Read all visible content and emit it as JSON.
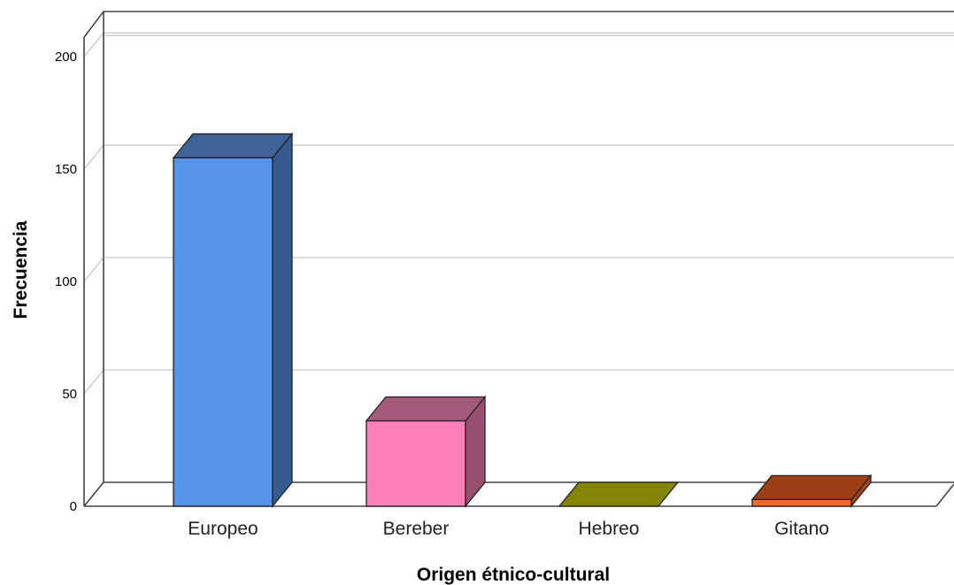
{
  "chart_data": {
    "type": "bar",
    "style": "3d",
    "categories": [
      "Europeo",
      "Bereber",
      "Hebreo",
      "Gitano"
    ],
    "values": [
      155,
      38,
      0,
      3
    ],
    "colors": [
      {
        "front": "#5594e6",
        "side": "#355b8e",
        "top": "#3e6399"
      },
      {
        "front": "#fb80b9",
        "side": "#98506f",
        "top": "#a35a7b"
      },
      {
        "front": "#8c8c0a",
        "side": "#6f6f08",
        "top": "#848408"
      },
      {
        "front": "#f5692a",
        "side": "#a3421a",
        "top": "#9c3e16"
      }
    ],
    "title": "",
    "xlabel": "Origen étnico-cultural",
    "ylabel": "Frecuencia",
    "ylim": [
      0,
      200
    ],
    "yticks": [
      0,
      50,
      100,
      150,
      200
    ],
    "grid": true
  }
}
